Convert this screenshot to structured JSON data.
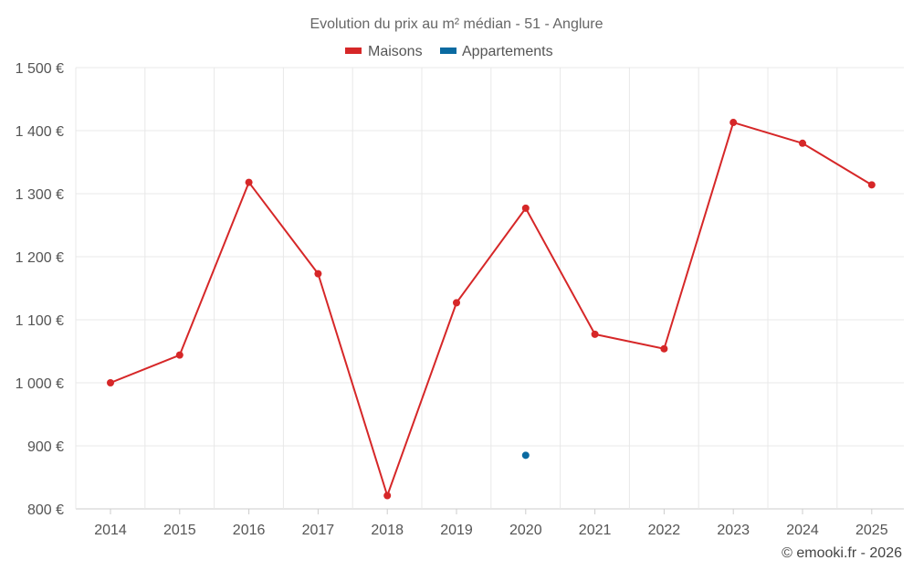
{
  "chart_data": {
    "type": "line",
    "title": "Evolution du prix au m² médian - 51 - Anglure",
    "categories": [
      "2014",
      "2015",
      "2016",
      "2017",
      "2018",
      "2019",
      "2020",
      "2021",
      "2022",
      "2023",
      "2024",
      "2025"
    ],
    "series": [
      {
        "name": "Maisons",
        "color": "#d62728",
        "values": [
          1000,
          1044,
          1318,
          1173,
          821,
          1127,
          1277,
          1077,
          1054,
          1413,
          1380,
          1314
        ]
      },
      {
        "name": "Appartements",
        "color": "#0a6aa1",
        "values": [
          null,
          null,
          null,
          null,
          null,
          null,
          885,
          null,
          null,
          null,
          null,
          null
        ]
      }
    ],
    "ylim": [
      800,
      1500
    ],
    "yticks": [
      800,
      900,
      1000,
      1100,
      1200,
      1300,
      1400,
      1500
    ],
    "ytick_labels": [
      "800 €",
      "900 €",
      "1 000 €",
      "1 100 €",
      "1 200 €",
      "1 300 €",
      "1 400 €",
      "1 500 €"
    ],
    "xlabel": "",
    "ylabel": "",
    "grid": true,
    "legend_position": "top-center"
  },
  "credit": "© emooki.fr - 2026"
}
